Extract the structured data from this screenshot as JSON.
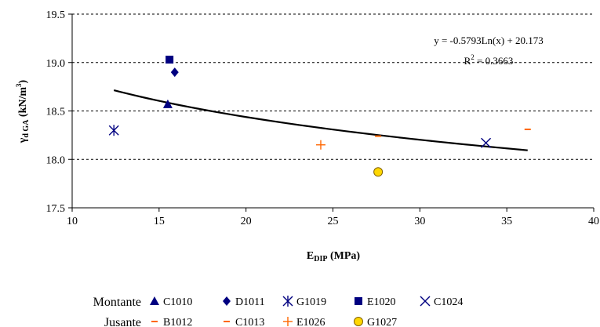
{
  "chart_data": {
    "type": "scatter",
    "xlabel": "E_DIP (MPa)",
    "ylabel": "γd GA (kN/m3)",
    "xlim": [
      10,
      40
    ],
    "ylim": [
      17.5,
      19.5
    ],
    "x_ticks": [
      10,
      15,
      20,
      25,
      30,
      35,
      40
    ],
    "y_ticks": [
      17.5,
      18.0,
      18.5,
      19.0,
      19.5
    ],
    "y_grid": "dashed",
    "series": [
      {
        "name": "C1010",
        "group": "Montante",
        "marker": "triangle",
        "color": "#000080",
        "points": [
          [
            15.5,
            18.57
          ]
        ]
      },
      {
        "name": "D1011",
        "group": "Montante",
        "marker": "diamond",
        "color": "#000080",
        "points": [
          [
            15.9,
            18.9
          ]
        ]
      },
      {
        "name": "G1019",
        "group": "Montante",
        "marker": "asterisk",
        "color": "#000080",
        "points": [
          [
            12.4,
            18.3
          ]
        ]
      },
      {
        "name": "E1020",
        "group": "Montante",
        "marker": "square",
        "color": "#000080",
        "points": [
          [
            15.6,
            19.03
          ]
        ]
      },
      {
        "name": "C1024",
        "group": "Montante",
        "marker": "x",
        "color": "#000080",
        "points": [
          [
            33.8,
            18.17
          ]
        ]
      },
      {
        "name": "B1012",
        "group": "Jusante",
        "marker": "dash",
        "color": "#FF6600",
        "points": [
          [
            36.2,
            18.31
          ]
        ]
      },
      {
        "name": "C1013",
        "group": "Jusante",
        "marker": "dash",
        "color": "#FF6600",
        "points": [
          [
            27.6,
            18.24
          ]
        ]
      },
      {
        "name": "E1026",
        "group": "Jusante",
        "marker": "plus",
        "color": "#FF6600",
        "points": [
          [
            24.3,
            18.15
          ]
        ]
      },
      {
        "name": "G1027",
        "group": "Jusante",
        "marker": "circle",
        "color": "#FFD700",
        "points": [
          [
            27.6,
            17.87
          ]
        ]
      }
    ],
    "trendline": {
      "type": "log",
      "a": -0.5793,
      "b": 20.173,
      "x_range": [
        12.4,
        36.2
      ],
      "color": "#000000"
    },
    "annotations": {
      "equation": "y = -0.5793Ln(x) + 20.173",
      "r2_prefix": "R",
      "r2_sup": "2",
      "r2_value": " = 0.3663"
    },
    "axis_titles": {
      "x_main": "E",
      "x_sub": "DIP",
      "x_tail": " (MPa)",
      "y_main": "γ",
      "y_sub": "d GA",
      "y_tail": " (kN/m",
      "y_sup": "3",
      "y_close": ")"
    },
    "legend": {
      "placement": "bottom",
      "groups": [
        {
          "label": "Montante",
          "items": [
            "C1010",
            "D1011",
            "G1019",
            "E1020",
            "C1024"
          ]
        },
        {
          "label": "Jusante",
          "items": [
            "B1012",
            "C1013",
            "E1026",
            "G1027"
          ]
        }
      ]
    }
  }
}
